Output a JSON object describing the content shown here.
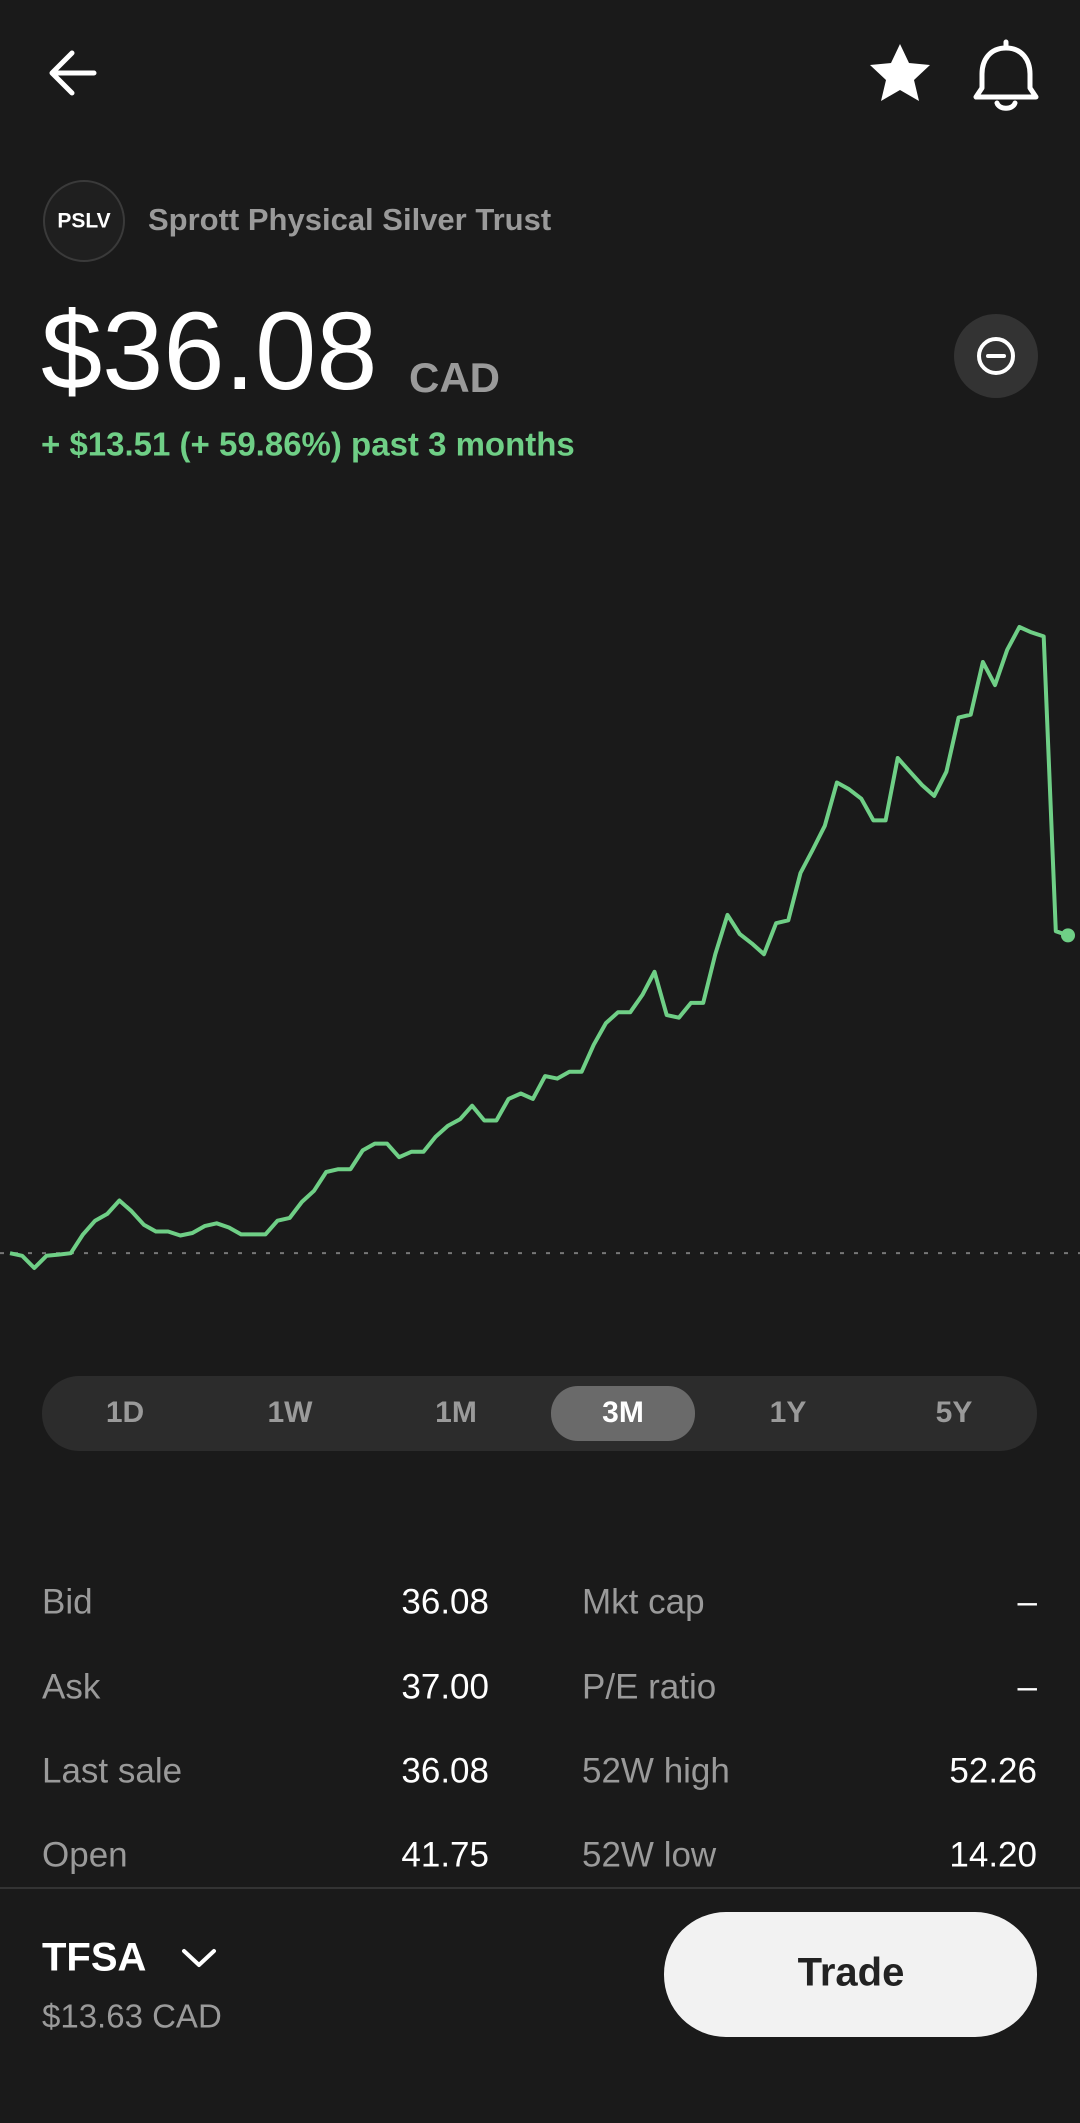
{
  "header": {
    "ticker": "PSLV",
    "name": "Sprott Physical Silver Trust"
  },
  "quote": {
    "price": "$36.08",
    "currency": "CAD",
    "change": "+ $13.51 (+ 59.86%) past 3 months"
  },
  "chart_data": {
    "type": "line",
    "color": "#6fcf86",
    "baseline": 22.57,
    "values": [
      22.57,
      22.46,
      21.94,
      22.46,
      22.51,
      22.57,
      23.37,
      23.95,
      24.24,
      24.81,
      24.35,
      23.78,
      23.49,
      23.49,
      23.32,
      23.43,
      23.72,
      23.84,
      23.66,
      23.37,
      23.37,
      23.37,
      23.95,
      24.07,
      24.75,
      25.22,
      26.02,
      26.14,
      26.14,
      26.94,
      27.23,
      27.23,
      26.65,
      26.88,
      26.88,
      27.52,
      27.98,
      28.26,
      28.84,
      28.21,
      28.21,
      29.13,
      29.36,
      29.13,
      30.1,
      29.99,
      30.28,
      30.28,
      31.43,
      32.35,
      32.81,
      32.81,
      33.55,
      34.53,
      32.69,
      32.58,
      33.21,
      33.21,
      35.28,
      36.95,
      36.14,
      35.74,
      35.28,
      36.6,
      36.72,
      38.73,
      39.71,
      40.74,
      42.58,
      42.29,
      41.89,
      40.97,
      40.97,
      43.62,
      43.04,
      42.47,
      42.01,
      43.04,
      45.34,
      45.46,
      47.7,
      46.72,
      48.22,
      49.19,
      48.96,
      48.79,
      36.26,
      36.08
    ]
  },
  "ranges": {
    "options": [
      "1D",
      "1W",
      "1M",
      "3M",
      "1Y",
      "5Y"
    ],
    "selected": 3
  },
  "stats": {
    "rows": [
      [
        "Bid",
        "36.08",
        "Mkt cap",
        "–"
      ],
      [
        "Ask",
        "37.00",
        "P/E ratio",
        "–"
      ],
      [
        "Last sale",
        "36.08",
        "52W high",
        "52.26"
      ],
      [
        "Open",
        "41.75",
        "52W low",
        "14.20"
      ]
    ]
  },
  "account": {
    "name": "TFSA",
    "balance": "$13.63 CAD"
  },
  "actions": {
    "trade": "Trade"
  }
}
